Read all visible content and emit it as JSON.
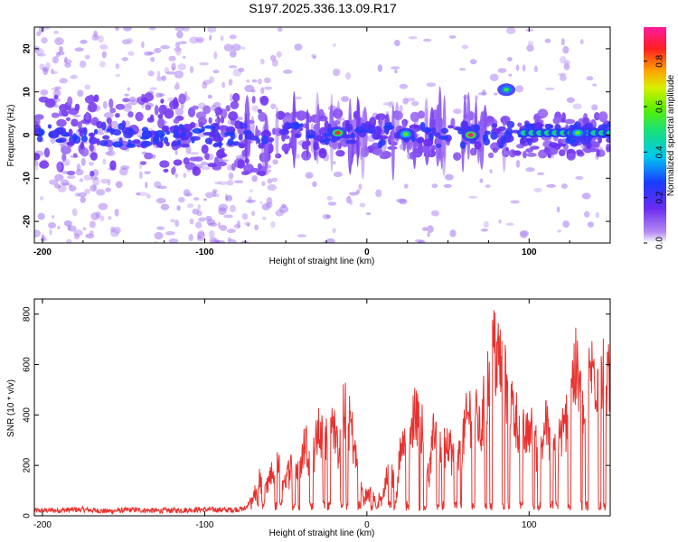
{
  "title": "S197.2025.336.13.09.R17",
  "chart_data": [
    {
      "type": "heatmap",
      "xlabel": "Height of straight line (km)",
      "ylabel": "Frequency (Hz)",
      "xlim": [
        -205,
        150
      ],
      "ylim": [
        -25,
        25
      ],
      "xticks": [
        -200,
        -100,
        0,
        100
      ],
      "yticks": [
        -20,
        -10,
        0,
        10,
        20
      ],
      "colorbar": {
        "label": "Normalized spectral amplitude",
        "range": [
          0,
          0.95
        ],
        "ticks": [
          0.0,
          0.2,
          0.4,
          0.6,
          0.8
        ],
        "tick_labels": [
          "0.0",
          "0.2",
          "0.4",
          "0.6",
          "0.8"
        ]
      },
      "features": [
        {
          "x": -18,
          "f": 0.5,
          "amplitude": 0.85
        },
        {
          "x": 24,
          "f": 0.2,
          "amplitude": 0.6
        },
        {
          "x": 64,
          "f": 0.0,
          "amplitude": 0.9
        },
        {
          "x": 86,
          "f": 10.5,
          "amplitude": 0.55
        },
        {
          "x": 130,
          "f": 0.5,
          "amplitude": 0.6
        }
      ]
    },
    {
      "type": "line",
      "xlabel": "Height of straight line (km)",
      "ylabel": "SNR (10 * v/v)",
      "xlim": [
        -205,
        150
      ],
      "ylim": [
        0,
        860
      ],
      "xticks": [
        -200,
        -100,
        0,
        100
      ],
      "yticks": [
        0,
        200,
        400,
        600,
        800
      ],
      "series": [
        {
          "name": "SNR",
          "color": "#e8322f",
          "x": [
            -205,
            -190,
            -175,
            -160,
            -145,
            -130,
            -115,
            -100,
            -85,
            -75,
            -70,
            -66,
            -62,
            -58,
            -54,
            -50,
            -46,
            -42,
            -38,
            -34,
            -30,
            -26,
            -22,
            -18,
            -14,
            -10,
            -6,
            -2,
            2,
            6,
            10,
            14,
            18,
            22,
            26,
            30,
            34,
            38,
            42,
            46,
            50,
            54,
            58,
            62,
            66,
            70,
            74,
            78,
            82,
            86,
            90,
            94,
            98,
            102,
            106,
            110,
            114,
            118,
            122,
            126,
            130,
            134,
            138,
            142,
            146,
            150
          ],
          "values": [
            20,
            22,
            25,
            18,
            24,
            20,
            22,
            25,
            23,
            28,
            80,
            180,
            130,
            210,
            250,
            160,
            290,
            200,
            380,
            270,
            420,
            350,
            560,
            310,
            520,
            460,
            240,
            80,
            120,
            60,
            90,
            260,
            120,
            400,
            310,
            560,
            420,
            180,
            450,
            310,
            380,
            260,
            340,
            480,
            560,
            400,
            640,
            820,
            760,
            620,
            540,
            420,
            380,
            460,
            240,
            480,
            300,
            380,
            430,
            690,
            700,
            460,
            720,
            700,
            660,
            640
          ]
        }
      ]
    }
  ]
}
